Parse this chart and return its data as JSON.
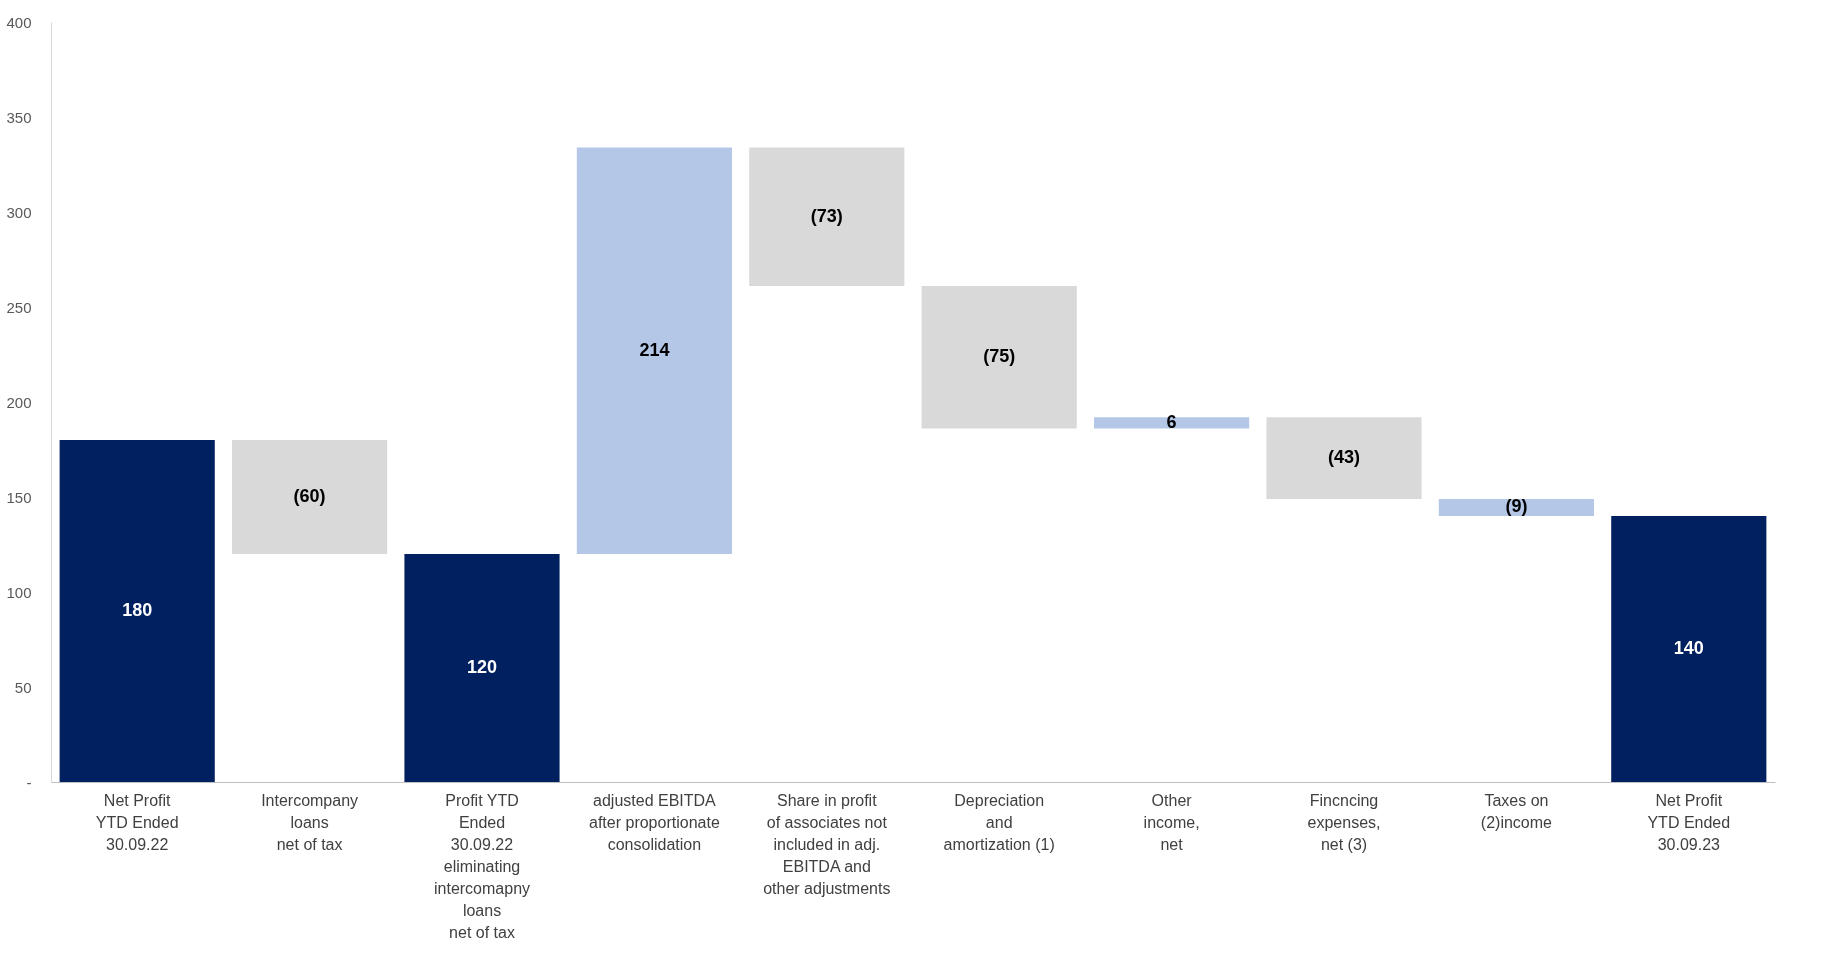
{
  "chart_data": {
    "type": "bar",
    "categories": [
      "Net Profit\nYTD Ended\n30.09.22",
      "Intercompany\nloans\nnet of tax",
      "Profit YTD\nEnded\n30.09.22\neliminating\nintercomapny\nloans\nnet of tax",
      "adjusted EBITDA\nafter proportionate\nconsolidation",
      "Share in profit\nof associates not\nincluded in adj.\nEBITDA and\nother adjustments",
      "Depreciation\nand\namortization (1)",
      "Other\nincome,\nnet",
      "Fincncing\nexpenses,\nnet (3)",
      "Taxes on\n(2)income",
      "Net Profit\nYTD Ended\n30.09.23"
    ],
    "values": [
      180,
      -60,
      120,
      214,
      -73,
      -75,
      6,
      -43,
      -9,
      140
    ],
    "base": [
      0,
      180,
      0,
      120,
      334,
      261,
      186,
      192,
      149,
      0
    ],
    "colors": [
      "#002060",
      "#d9d9d9",
      "#002060",
      "#b4c7e7",
      "#d9d9d9",
      "#d9d9d9",
      "#b4c7e7",
      "#d9d9d9",
      "#b4c7e7",
      "#002060"
    ],
    "value_labels": [
      "180",
      "(60)",
      "120",
      "214",
      "(73)",
      "(75)",
      "6",
      "(43)",
      "(9)",
      "140"
    ],
    "ylim": [
      0,
      400
    ],
    "yticks": [
      {
        "value": 0,
        "label": "-"
      },
      50,
      100,
      150,
      200,
      250,
      300,
      350,
      400
    ],
    "grid": false
  }
}
